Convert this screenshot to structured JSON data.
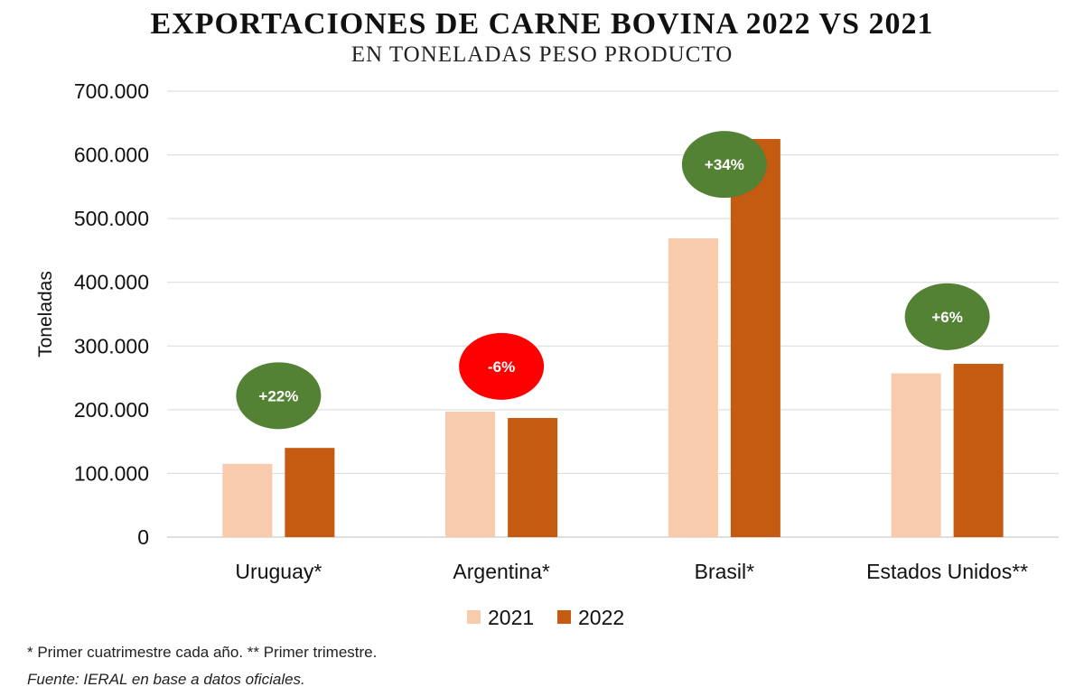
{
  "chart_data": {
    "type": "bar",
    "title": "Exportaciones de Carne Bovina 2022 vs 2021",
    "subtitle": "en toneladas peso producto",
    "xlabel": "",
    "ylabel": "Toneladas",
    "ylim": [
      0,
      700000
    ],
    "yticks": [
      0,
      100000,
      200000,
      300000,
      400000,
      500000,
      600000,
      700000
    ],
    "ytick_labels": [
      "0",
      "100.000",
      "200.000",
      "300.000",
      "400.000",
      "500.000",
      "600.000",
      "700.000"
    ],
    "grid": true,
    "legend_position": "bottom",
    "categories": [
      "Uruguay*",
      "Argentina*",
      "Brasil*",
      "Estados Unidos**"
    ],
    "series": [
      {
        "name": "2021",
        "color": "#F8CBAD",
        "values": [
          115000,
          197000,
          469000,
          257000
        ]
      },
      {
        "name": "2022",
        "color": "#C55A11",
        "values": [
          140000,
          187000,
          625000,
          272000
        ]
      }
    ],
    "annotations": [
      {
        "category": "Uruguay*",
        "text": "+22%",
        "color": "#548235",
        "y": 222000
      },
      {
        "category": "Argentina*",
        "text": "-6%",
        "color": "#FF0000",
        "y": 268000
      },
      {
        "category": "Brasil*",
        "text": "+34%",
        "color": "#548235",
        "y": 585000
      },
      {
        "category": "Estados Unidos**",
        "text": "+6%",
        "color": "#548235",
        "y": 346000
      }
    ]
  },
  "footnotes": {
    "note": "* Primer cuatrimestre cada año. ** Primer trimestre.",
    "source": "Fuente: IERAL en base a datos oficiales."
  }
}
